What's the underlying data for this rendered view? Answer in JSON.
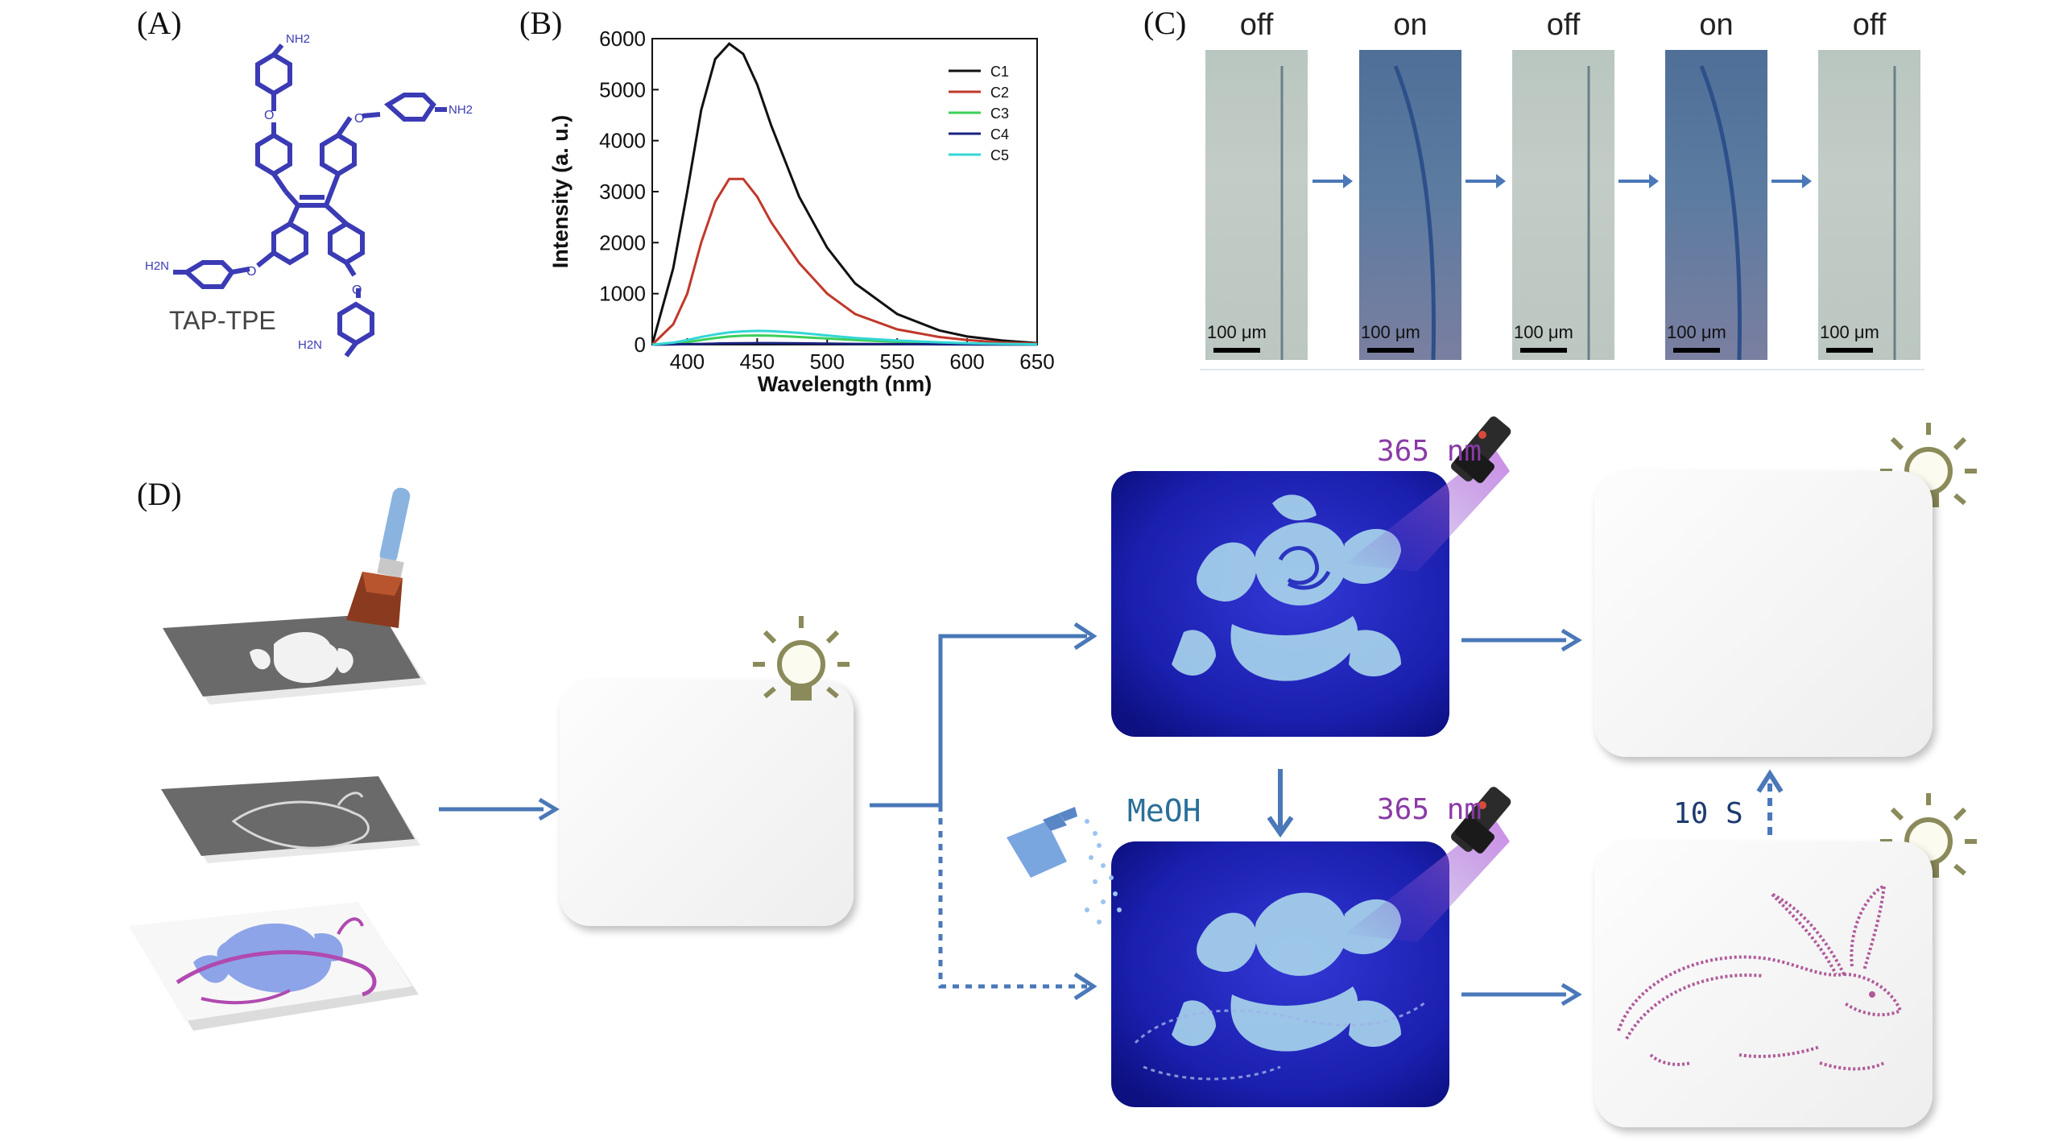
{
  "panels": {
    "a": {
      "label": "(A)",
      "molecule_name": "TAP-TPE",
      "group_labels": [
        "NH2",
        "NH2",
        "H2N",
        "H2N"
      ]
    },
    "b": {
      "label": "(B)"
    },
    "c": {
      "label": "(C)",
      "states": [
        "off",
        "on",
        "off",
        "on",
        "off"
      ],
      "scale_label": "100 μm"
    },
    "d": {
      "label": "(D)",
      "uv_label_top": "365 nm",
      "uv_label_bottom": "365 nm",
      "solvent_label": "MeOH",
      "time_label": "10 S"
    }
  },
  "colors": {
    "molecule": "#3b3bb5",
    "arrow": "#4a78b8",
    "uv_label": "#8a3aa6",
    "photo_off": "#bcc7c2",
    "photo_on": "#5b7ba0",
    "uv_panel": "#1a1fae"
  },
  "icons": [
    "paint-brush-icon",
    "light-bulb-icon",
    "uv-flashlight-icon",
    "spray-bottle-icon"
  ],
  "chart_data": {
    "type": "line",
    "xlabel": "Wavelength (nm)",
    "ylabel": "Intensity (a. u.)",
    "xlim": [
      375,
      650
    ],
    "ylim": [
      0,
      6000
    ],
    "xticks": [
      400,
      450,
      500,
      550,
      600,
      650
    ],
    "yticks": [
      0,
      1000,
      2000,
      3000,
      4000,
      5000,
      6000
    ],
    "legend_position": "top-right",
    "x": [
      375,
      390,
      400,
      410,
      420,
      430,
      440,
      450,
      460,
      470,
      480,
      500,
      520,
      550,
      580,
      600,
      625,
      650
    ],
    "series": [
      {
        "name": "C1",
        "color": "#111111",
        "values": [
          0,
          1500,
          3000,
          4600,
          5600,
          5900,
          5700,
          5100,
          4300,
          3600,
          2900,
          1900,
          1200,
          600,
          280,
          160,
          80,
          30
        ]
      },
      {
        "name": "C2",
        "color": "#c0392b",
        "values": [
          0,
          400,
          1000,
          2000,
          2800,
          3250,
          3250,
          2900,
          2400,
          2000,
          1600,
          1000,
          600,
          300,
          150,
          90,
          40,
          20
        ]
      },
      {
        "name": "C3",
        "color": "#3ccf5a",
        "values": [
          0,
          20,
          50,
          90,
          130,
          160,
          175,
          180,
          175,
          165,
          150,
          120,
          90,
          55,
          30,
          18,
          10,
          5
        ]
      },
      {
        "name": "C4",
        "color": "#1a237e",
        "values": [
          0,
          5,
          10,
          15,
          20,
          25,
          28,
          30,
          30,
          28,
          25,
          20,
          15,
          10,
          6,
          4,
          2,
          1
        ]
      },
      {
        "name": "C5",
        "color": "#33d6d6",
        "values": [
          0,
          40,
          90,
          150,
          200,
          240,
          260,
          270,
          265,
          250,
          230,
          180,
          130,
          80,
          45,
          28,
          14,
          6
        ]
      }
    ]
  }
}
